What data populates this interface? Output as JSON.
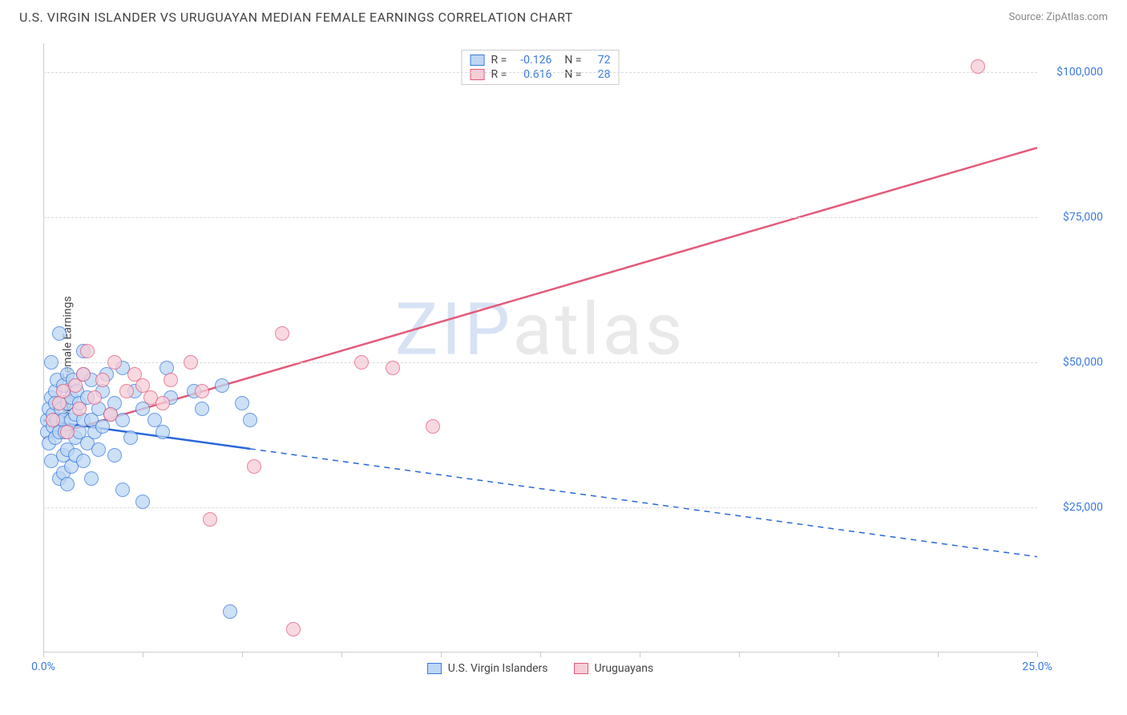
{
  "title": "U.S. VIRGIN ISLANDER VS URUGUAYAN MEDIAN FEMALE EARNINGS CORRELATION CHART",
  "source": "Source: ZipAtlas.com",
  "watermark": {
    "part1": "ZIP",
    "part2": "atlas"
  },
  "chart": {
    "type": "scatter",
    "y_axis": {
      "label": "Median Female Earnings",
      "min": 0,
      "max": 105000,
      "tick_values": [
        25000,
        50000,
        75000,
        100000
      ],
      "tick_labels": [
        "$25,000",
        "$50,000",
        "$75,000",
        "$100,000"
      ],
      "tick_color": "#3a7ae0",
      "tick_fontsize": 14,
      "grid_color": "#d9d9d9",
      "grid_dash": true
    },
    "x_axis": {
      "min": 0,
      "max": 25,
      "tick_values": [
        0,
        2.5,
        5,
        7.5,
        10,
        12.5,
        15,
        17.5,
        20,
        22.5,
        25
      ],
      "end_labels": {
        "left": "0.0%",
        "right": "25.0%"
      },
      "tick_color": "#3a7ae0",
      "tick_fontsize": 14
    },
    "legend_top": {
      "rows": [
        {
          "swatch_fill": "#bcd6f3",
          "swatch_border": "#3a7ae0",
          "r_label": "R =",
          "r_value": "-0.126",
          "n_label": "N =",
          "n_value": "72"
        },
        {
          "swatch_fill": "#f7cdd7",
          "swatch_border": "#e35a7a",
          "r_label": "R =",
          "r_value": "0.616",
          "n_label": "N =",
          "n_value": "28"
        }
      ]
    },
    "legend_bottom": [
      {
        "swatch_fill": "#bcd6f3",
        "swatch_border": "#3a7ae0",
        "label": "U.S. Virgin Islanders"
      },
      {
        "swatch_fill": "#f7cdd7",
        "swatch_border": "#e35a7a",
        "label": "Uruguayans"
      }
    ],
    "marker_style": {
      "radius": 9,
      "opacity": 0.75,
      "stroke_width": 1
    },
    "series": [
      {
        "name": "usvi",
        "fill": "#bcd6f3",
        "stroke": "#3a7ae0",
        "points": [
          [
            0.1,
            38000
          ],
          [
            0.1,
            40000
          ],
          [
            0.15,
            42000
          ],
          [
            0.15,
            36000
          ],
          [
            0.2,
            44000
          ],
          [
            0.2,
            50000
          ],
          [
            0.2,
            33000
          ],
          [
            0.25,
            39000
          ],
          [
            0.25,
            41000
          ],
          [
            0.3,
            45000
          ],
          [
            0.3,
            37000
          ],
          [
            0.3,
            43000
          ],
          [
            0.35,
            40000
          ],
          [
            0.35,
            47000
          ],
          [
            0.4,
            38000
          ],
          [
            0.4,
            55000
          ],
          [
            0.4,
            30000
          ],
          [
            0.45,
            42000
          ],
          [
            0.5,
            34000
          ],
          [
            0.5,
            40000
          ],
          [
            0.5,
            46000
          ],
          [
            0.5,
            31000
          ],
          [
            0.55,
            38000
          ],
          [
            0.6,
            43000
          ],
          [
            0.6,
            48000
          ],
          [
            0.6,
            35000
          ],
          [
            0.6,
            29000
          ],
          [
            0.7,
            40000
          ],
          [
            0.7,
            44000
          ],
          [
            0.7,
            32000
          ],
          [
            0.75,
            47000
          ],
          [
            0.8,
            37000
          ],
          [
            0.8,
            41000
          ],
          [
            0.8,
            34000
          ],
          [
            0.85,
            45000
          ],
          [
            0.9,
            38000
          ],
          [
            0.9,
            43000
          ],
          [
            1.0,
            40000
          ],
          [
            1.0,
            33000
          ],
          [
            1.0,
            48000
          ],
          [
            1.0,
            52000
          ],
          [
            1.1,
            36000
          ],
          [
            1.1,
            44000
          ],
          [
            1.2,
            40000
          ],
          [
            1.2,
            30000
          ],
          [
            1.2,
            47000
          ],
          [
            1.3,
            38000
          ],
          [
            1.4,
            42000
          ],
          [
            1.4,
            35000
          ],
          [
            1.5,
            45000
          ],
          [
            1.5,
            39000
          ],
          [
            1.6,
            48000
          ],
          [
            1.7,
            41000
          ],
          [
            1.8,
            34000
          ],
          [
            1.8,
            43000
          ],
          [
            2.0,
            40000
          ],
          [
            2.0,
            49000
          ],
          [
            2.0,
            28000
          ],
          [
            2.2,
            37000
          ],
          [
            2.3,
            45000
          ],
          [
            2.5,
            42000
          ],
          [
            2.5,
            26000
          ],
          [
            2.8,
            40000
          ],
          [
            3.0,
            38000
          ],
          [
            3.1,
            49000
          ],
          [
            3.2,
            44000
          ],
          [
            3.8,
            45000
          ],
          [
            4.0,
            42000
          ],
          [
            4.5,
            46000
          ],
          [
            4.7,
            7000
          ],
          [
            5.0,
            43000
          ],
          [
            5.2,
            40000
          ]
        ],
        "trend": {
          "color": "#2968d8",
          "width": 2.5,
          "solid_to_x": 5.2,
          "y_at_xmin": 40000,
          "y_at_xmax": 16500,
          "dash_pattern": "7,6"
        }
      },
      {
        "name": "uruguayan",
        "fill": "#f7cdd7",
        "stroke": "#e35a7a",
        "points": [
          [
            0.25,
            40000
          ],
          [
            0.4,
            43000
          ],
          [
            0.5,
            45000
          ],
          [
            0.6,
            38000
          ],
          [
            0.8,
            46000
          ],
          [
            0.9,
            42000
          ],
          [
            1.0,
            48000
          ],
          [
            1.1,
            52000
          ],
          [
            1.3,
            44000
          ],
          [
            1.5,
            47000
          ],
          [
            1.7,
            41000
          ],
          [
            1.8,
            50000
          ],
          [
            2.1,
            45000
          ],
          [
            2.3,
            48000
          ],
          [
            2.5,
            46000
          ],
          [
            2.7,
            44000
          ],
          [
            3.0,
            43000
          ],
          [
            3.2,
            47000
          ],
          [
            3.7,
            50000
          ],
          [
            4.0,
            45000
          ],
          [
            4.2,
            23000
          ],
          [
            5.3,
            32000
          ],
          [
            6.0,
            55000
          ],
          [
            6.3,
            4000
          ],
          [
            8.0,
            50000
          ],
          [
            8.8,
            49000
          ],
          [
            9.8,
            39000
          ],
          [
            23.5,
            101000
          ]
        ],
        "trend": {
          "color": "#e35a7a",
          "width": 2.5,
          "solid_to_x": 25,
          "y_at_xmin": 37000,
          "y_at_xmax": 87000
        }
      }
    ]
  }
}
